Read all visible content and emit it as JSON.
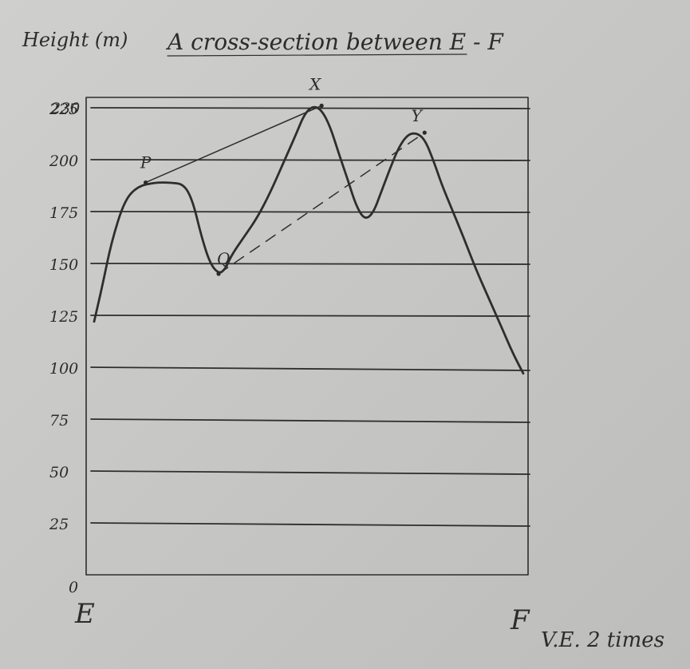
{
  "title": "A cross-section between E - F",
  "y_axis_label": "Height (m)",
  "start_label": "E",
  "end_label": "F",
  "scale_note": "V.E. 2 times",
  "chart_data": {
    "type": "line",
    "title": "A cross-section between E - F",
    "ylabel": "Height (m)",
    "ylim": [
      0,
      230
    ],
    "yticks": [
      0,
      25,
      50,
      75,
      100,
      125,
      150,
      175,
      200,
      225,
      230
    ],
    "ytick_labels": [
      "0",
      "25",
      "50",
      "75",
      "100",
      "125",
      "150",
      "175",
      "200",
      "225",
      "230"
    ],
    "xlim": [
      0,
      1
    ],
    "x_endpoints": [
      "E",
      "F"
    ],
    "grid": true,
    "profile": {
      "x": [
        0.0,
        0.02,
        0.04,
        0.07,
        0.1,
        0.14,
        0.18,
        0.21,
        0.23,
        0.25,
        0.27,
        0.29,
        0.305,
        0.32,
        0.35,
        0.38,
        0.41,
        0.44,
        0.47,
        0.49,
        0.51,
        0.53,
        0.55,
        0.57,
        0.59,
        0.61,
        0.63,
        0.65,
        0.67,
        0.69,
        0.71,
        0.73,
        0.75,
        0.77,
        0.79,
        0.81,
        0.83,
        0.86,
        0.89,
        0.92,
        0.95,
        0.975,
        1.0
      ],
      "y": [
        122,
        140,
        160,
        180,
        187,
        189,
        189,
        188,
        180,
        163,
        150,
        145,
        147,
        154,
        163,
        172,
        184,
        198,
        212,
        222,
        226,
        224,
        216,
        203,
        191,
        178,
        171,
        174,
        185,
        196,
        206,
        212,
        213,
        210,
        200,
        188,
        178,
        163,
        147,
        133,
        119,
        107,
        97
      ]
    },
    "points": [
      {
        "label": "P",
        "x": 0.12,
        "y": 189
      },
      {
        "label": "Q",
        "x": 0.29,
        "y": 145
      },
      {
        "label": "X",
        "x": 0.53,
        "y": 226
      },
      {
        "label": "Y",
        "x": 0.77,
        "y": 213
      }
    ],
    "lines": [
      {
        "from": "P",
        "to": "X",
        "style": "solid"
      },
      {
        "from": "Q",
        "to": "Y",
        "style": "dashed"
      }
    ]
  }
}
